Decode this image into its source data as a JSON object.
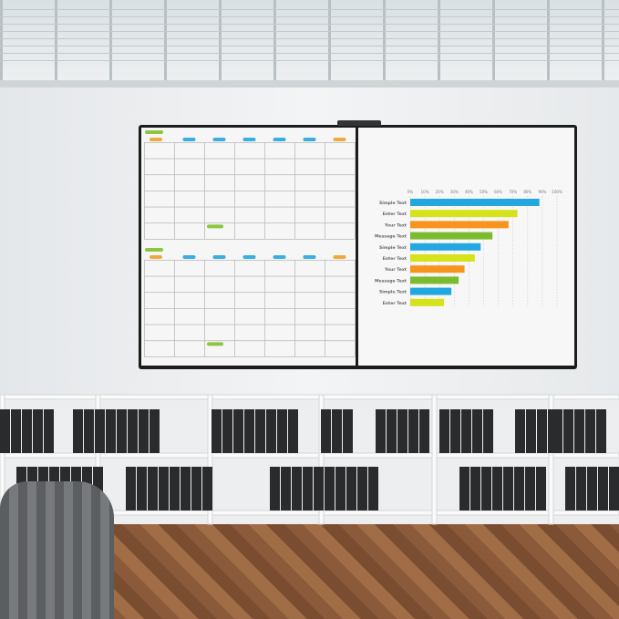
{
  "scene": {
    "board_frame_color": "#1c1c1e",
    "shelf_color": "#f4f5f6",
    "binder_color": "#2a2b2d"
  },
  "calendar": {
    "header_pill_colors": [
      "#f2a93b",
      "#3aaee0",
      "#3aaee0",
      "#3aaee0",
      "#3aaee0",
      "#3aaee0",
      "#f2a93b"
    ],
    "month_pill_color": "#8cc63f",
    "rows": 6,
    "columns": 7
  },
  "chart_data": {
    "type": "bar",
    "orientation": "horizontal",
    "categories": [
      "Simple Text",
      "Enter Text",
      "Your Text",
      "Message Text",
      "Simple Text",
      "Enter Text",
      "Your Text",
      "Message Text",
      "Simple Text",
      "Enter Text"
    ],
    "values": [
      88,
      73,
      67,
      56,
      48,
      44,
      37,
      33,
      28,
      23
    ],
    "colors": [
      "#22a7e0",
      "#d6e21a",
      "#f7941d",
      "#7dbb2e",
      "#22a7e0",
      "#d6e21a",
      "#f7941d",
      "#7dbb2e",
      "#22a7e0",
      "#d6e21a"
    ],
    "xlim": [
      0,
      100
    ],
    "xticks": [
      "0%",
      "10%",
      "20%",
      "30%",
      "40%",
      "50%",
      "60%",
      "70%",
      "80%",
      "90%",
      "100%"
    ],
    "grid": true
  }
}
